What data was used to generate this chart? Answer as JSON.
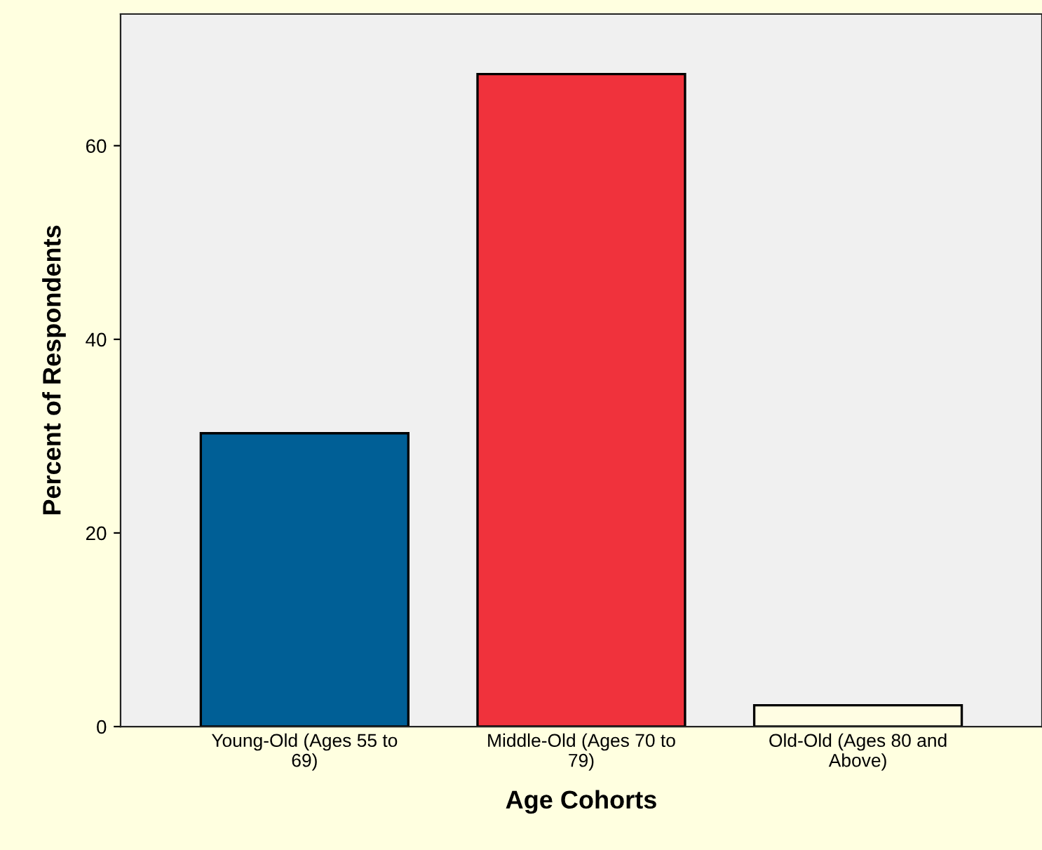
{
  "chart_data": {
    "type": "bar",
    "xlabel": "Age Cohorts",
    "ylabel": "Percent of Respondents",
    "categories": [
      "Young-Old (Ages 55 to\n69)",
      "Middle-Old (Ages 70 to\n79)",
      "Old-Old (Ages 80 and\nAbove)"
    ],
    "values": [
      30.3,
      67.4,
      2.2
    ],
    "colors": [
      "#005f96",
      "#f0323c",
      "#fffde3"
    ],
    "ylim": [
      0,
      73.6
    ],
    "yticks": [
      0,
      20,
      40,
      60
    ],
    "grid": false,
    "legend": false
  }
}
